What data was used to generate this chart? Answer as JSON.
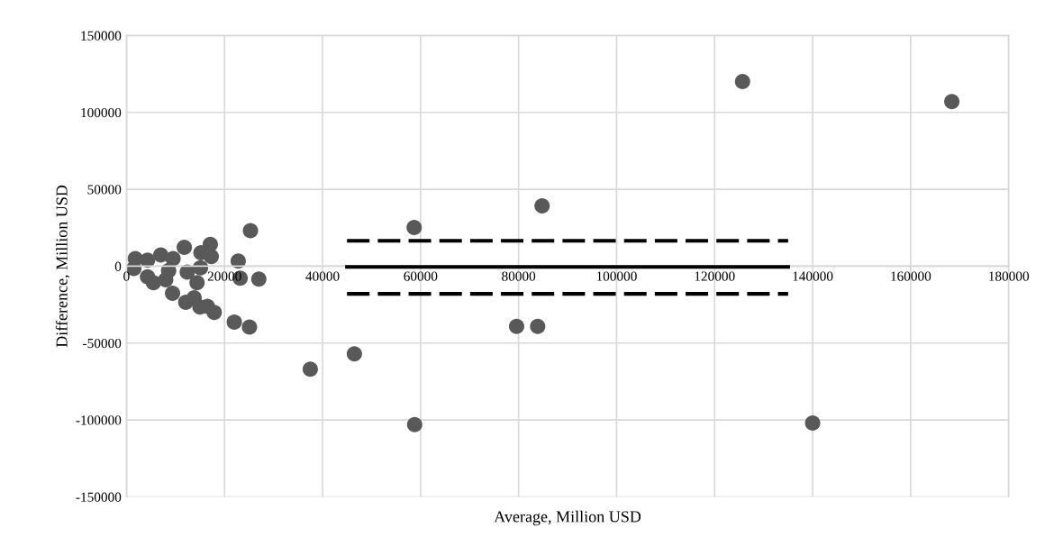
{
  "chart_data": {
    "type": "scatter",
    "xlabel": "Average, Million USD",
    "ylabel": "Difference, Million USD",
    "xlim": [
      0,
      180000
    ],
    "xticks": [
      0,
      20000,
      40000,
      60000,
      80000,
      100000,
      120000,
      140000,
      160000,
      180000
    ],
    "ylim": [
      -150000,
      150000
    ],
    "yticks": [
      -150000,
      -100000,
      -50000,
      0,
      50000,
      100000,
      150000
    ],
    "grid": true,
    "marker": "circle",
    "series": [
      {
        "color": "#595959",
        "x": [
          125700,
          168400,
          58700,
          84800,
          79600,
          83900,
          58800,
          140000,
          37500,
          46500,
          25300,
          11800,
          17100,
          15200,
          17300,
          22800,
          15100,
          12400,
          14400,
          23200,
          27000,
          12100,
          13800,
          15000,
          16500,
          17900,
          22000,
          25100,
          9400,
          9500,
          7000,
          4300,
          1800,
          4300,
          5500,
          8000,
          8600,
          1500
        ],
        "values": [
          120000,
          107000,
          25100,
          39200,
          -39200,
          -39200,
          -103000,
          -102000,
          -67000,
          -57000,
          23100,
          12200,
          14100,
          8800,
          6300,
          3300,
          -1000,
          -3900,
          -10800,
          -7800,
          -8400,
          -23500,
          -20600,
          -26500,
          -26100,
          -30000,
          -36300,
          -39600,
          -17600,
          4900,
          7300,
          3900,
          4900,
          -6900,
          -10800,
          -8800,
          -2900,
          -1500
        ]
      },
      {
        "type": "line",
        "color": "#000000",
        "line_style": "solid",
        "marker": "none",
        "x": [
          45000,
          135000
        ],
        "values": [
          -500,
          -500
        ]
      },
      {
        "type": "line",
        "color": "#000000",
        "line_style": "dashed",
        "marker": "none",
        "x": [
          45000,
          135000
        ],
        "values": [
          16500,
          16500
        ]
      },
      {
        "type": "line",
        "color": "#000000",
        "line_style": "dashed",
        "marker": "none",
        "x": [
          45000,
          135000
        ],
        "values": [
          -18000,
          -18000
        ]
      }
    ]
  }
}
